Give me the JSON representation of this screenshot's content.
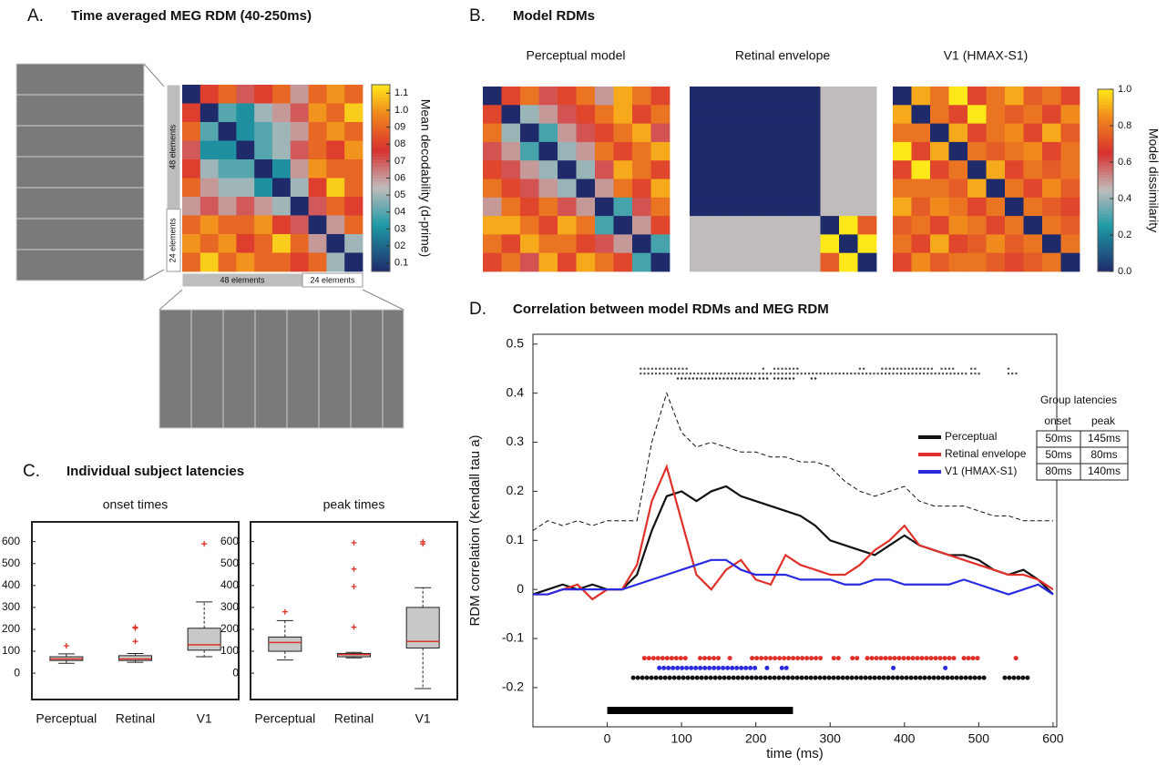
{
  "chart_data": [
    {
      "type": "heatmap",
      "panel": "A.",
      "title": "Time averaged MEG RDM (40-250ms)",
      "row_groups": [
        "48 elements",
        "24 elements"
      ],
      "col_groups": [
        "48 elements",
        "24 elements"
      ],
      "zlim": [
        0.05,
        1.15
      ],
      "colorbar_label": "Mean decodability (d-prime)",
      "colorbar_ticks": [
        0.1,
        {
          "value": 0.2,
          "label": "02"
        },
        {
          "value": 0.3,
          "label": "03"
        },
        {
          "value": 0.4,
          "label": "04"
        },
        {
          "value": 0.5,
          "label": "05"
        },
        {
          "value": 0.6,
          "label": "06"
        },
        {
          "value": 0.7,
          "label": "07"
        },
        {
          "value": 0.8,
          "label": "08"
        },
        {
          "value": 0.9,
          "label": "09"
        },
        {
          "value": 1.0,
          "label": "1.0"
        },
        1.1
      ],
      "panels": [
        {
          "values": [
            [
              0,
              0.8,
              0.9,
              0.7,
              0.8,
              0.9,
              0.6,
              0.9,
              1.0,
              0.9
            ],
            [
              0.8,
              0,
              0.4,
              0.3,
              0.5,
              0.6,
              0.7,
              1.0,
              0.9,
              1.1
            ],
            [
              0.9,
              0.4,
              0,
              0.3,
              0.4,
              0.5,
              0.6,
              0.9,
              1.0,
              0.9
            ],
            [
              0.7,
              0.3,
              0.3,
              0,
              0.4,
              0.5,
              0.7,
              0.9,
              0.8,
              1.0
            ],
            [
              0.8,
              0.5,
              0.4,
              0.4,
              0,
              0.3,
              0.6,
              1.0,
              0.9,
              0.9
            ],
            [
              0.9,
              0.6,
              0.5,
              0.5,
              0.3,
              0,
              0.5,
              0.8,
              1.1,
              0.9
            ],
            [
              0.6,
              0.7,
              0.6,
              0.7,
              0.6,
              0.5,
              0,
              0.7,
              0.9,
              0.8
            ],
            [
              0.9,
              1.0,
              0.9,
              0.9,
              1.0,
              0.8,
              0.7,
              0,
              0.6,
              0.9
            ],
            [
              1.0,
              0.9,
              1.0,
              0.8,
              0.9,
              1.1,
              0.9,
              0.6,
              0,
              0.5
            ],
            [
              0.9,
              1.1,
              0.9,
              1.0,
              0.9,
              0.9,
              0.8,
              0.9,
              0.5,
              0
            ]
          ]
        }
      ]
    },
    {
      "type": "heatmap",
      "panel": "B.",
      "title": "Model RDMs",
      "zlim": [
        0,
        1
      ],
      "colorbar_label": "Model dissimilarity",
      "colorbar_ticks": [
        {
          "value": 0,
          "label": "0.0"
        },
        0.2,
        0.4,
        0.6,
        0.8,
        {
          "value": 1,
          "label": "1.0"
        }
      ],
      "panels": [
        {
          "subtitle": "Perceptual model",
          "values": [
            [
              0,
              0.7,
              0.8,
              0.6,
              0.7,
              0.8,
              0.5,
              0.9,
              0.8,
              0.7
            ],
            [
              0.7,
              0,
              0.4,
              0.5,
              0.6,
              0.7,
              0.8,
              0.9,
              0.7,
              0.8
            ],
            [
              0.8,
              0.4,
              0,
              0.3,
              0.5,
              0.6,
              0.7,
              0.8,
              0.9,
              0.6
            ],
            [
              0.6,
              0.5,
              0.3,
              0,
              0.4,
              0.5,
              0.8,
              0.7,
              0.8,
              0.9
            ],
            [
              0.7,
              0.6,
              0.5,
              0.4,
              0,
              0.4,
              0.6,
              0.9,
              0.8,
              0.7
            ],
            [
              0.8,
              0.7,
              0.6,
              0.5,
              0.4,
              0,
              0.5,
              0.8,
              0.7,
              0.9
            ],
            [
              0.5,
              0.8,
              0.7,
              0.8,
              0.6,
              0.5,
              0,
              0.3,
              0.6,
              0.8
            ],
            [
              0.9,
              0.9,
              0.8,
              0.7,
              0.9,
              0.8,
              0.3,
              0,
              0.5,
              0.7
            ],
            [
              0.8,
              0.7,
              0.9,
              0.8,
              0.8,
              0.7,
              0.6,
              0.5,
              0,
              0.3
            ],
            [
              0.7,
              0.8,
              0.6,
              0.9,
              0.7,
              0.9,
              0.8,
              0.7,
              0.3,
              0
            ]
          ]
        },
        {
          "subtitle": "Retinal envelope",
          "values": [
            [
              0,
              0,
              0,
              0,
              0,
              0,
              0,
              0.45,
              0.45,
              0.45
            ],
            [
              0,
              0,
              0,
              0,
              0,
              0,
              0,
              0.45,
              0.45,
              0.45
            ],
            [
              0,
              0,
              0,
              0,
              0,
              0,
              0,
              0.45,
              0.45,
              0.45
            ],
            [
              0,
              0,
              0,
              0,
              0,
              0,
              0,
              0.45,
              0.45,
              0.45
            ],
            [
              0,
              0,
              0,
              0,
              0,
              0,
              0,
              0.45,
              0.45,
              0.45
            ],
            [
              0,
              0,
              0,
              0,
              0,
              0,
              0,
              0.45,
              0.45,
              0.45
            ],
            [
              0,
              0,
              0,
              0,
              0,
              0,
              0,
              0.45,
              0.45,
              0.45
            ],
            [
              0.45,
              0.45,
              0.45,
              0.45,
              0.45,
              0.45,
              0.45,
              0,
              1.0,
              0.75
            ],
            [
              0.45,
              0.45,
              0.45,
              0.45,
              0.45,
              0.45,
              0.45,
              1.0,
              0,
              1.0
            ],
            [
              0.45,
              0.45,
              0.45,
              0.45,
              0.45,
              0.45,
              0.45,
              0.75,
              1.0,
              0
            ]
          ]
        },
        {
          "subtitle": "V1 (HMAX-S1)",
          "values": [
            [
              0,
              0.9,
              0.8,
              1.0,
              0.7,
              0.8,
              0.9,
              0.75,
              0.8,
              0.7
            ],
            [
              0.9,
              0,
              0.8,
              0.7,
              1.0,
              0.8,
              0.75,
              0.8,
              0.7,
              0.85
            ],
            [
              0.8,
              0.8,
              0,
              0.9,
              0.7,
              0.8,
              0.85,
              0.7,
              0.9,
              0.75
            ],
            [
              1.0,
              0.7,
              0.9,
              0,
              0.8,
              0.75,
              0.8,
              0.85,
              0.7,
              0.8
            ],
            [
              0.7,
              1.0,
              0.7,
              0.8,
              0,
              0.9,
              0.7,
              0.8,
              0.75,
              0.8
            ],
            [
              0.8,
              0.8,
              0.8,
              0.75,
              0.9,
              0,
              0.8,
              0.7,
              0.85,
              0.75
            ],
            [
              0.9,
              0.75,
              0.85,
              0.8,
              0.7,
              0.8,
              0,
              0.8,
              0.75,
              0.7
            ],
            [
              0.75,
              0.8,
              0.7,
              0.85,
              0.8,
              0.7,
              0.8,
              0,
              0.8,
              0.75
            ],
            [
              0.8,
              0.7,
              0.9,
              0.7,
              0.75,
              0.85,
              0.75,
              0.8,
              0,
              0.8
            ],
            [
              0.7,
              0.85,
              0.75,
              0.8,
              0.8,
              0.75,
              0.7,
              0.75,
              0.8,
              0
            ]
          ]
        }
      ]
    },
    {
      "type": "box",
      "panel": "C.",
      "title": "Individual subject latencies",
      "box_color": "#c8c8c8",
      "median_color": "#e0302a",
      "flier_color": "#e0302a",
      "categories": [
        "Perceptual",
        "Retinal",
        "V1"
      ],
      "ylim": [
        -120,
        690
      ],
      "yticks": [
        0,
        100,
        200,
        300,
        400,
        500,
        600
      ],
      "panels": [
        {
          "subtitle": "onset times",
          "boxes": [
            {
              "whislo": 45,
              "q1": 58,
              "med": 65,
              "q3": 75,
              "whishi": 88,
              "fliers": [
                125
              ]
            },
            {
              "whislo": 50,
              "q1": 58,
              "med": 65,
              "q3": 80,
              "whishi": 90,
              "fliers": [
                145,
                205,
                210
              ]
            },
            {
              "whislo": 75,
              "q1": 105,
              "med": 130,
              "q3": 205,
              "whishi": 325,
              "fliers": [
                590
              ]
            }
          ]
        },
        {
          "subtitle": "peak times",
          "boxes": [
            {
              "whislo": 60,
              "q1": 100,
              "med": 140,
              "q3": 165,
              "whishi": 240,
              "fliers": [
                280
              ]
            },
            {
              "whislo": 70,
              "q1": 75,
              "med": 85,
              "q3": 90,
              "whishi": 95,
              "fliers": [
                210,
                395,
                475,
                595
              ]
            },
            {
              "whislo": -70,
              "q1": 115,
              "med": 145,
              "q3": 300,
              "whishi": 390,
              "fliers": [
                590,
                600
              ]
            }
          ]
        }
      ]
    },
    {
      "type": "line",
      "panel": "D.",
      "title": "Correlation between model RDMs and MEG RDM",
      "x_label": "time (ms)",
      "y_label": "RDM correlation (Kendall tau a)",
      "xlim": [
        -100,
        605
      ],
      "ylim": [
        -0.28,
        0.52
      ],
      "xticks": [
        0,
        100,
        200,
        300,
        400,
        500,
        600
      ],
      "yticks": [
        -0.2,
        -0.1,
        0,
        0.1,
        0.2,
        0.3,
        0.4,
        0.5
      ],
      "x": [
        -100,
        -80,
        -60,
        -40,
        -20,
        0,
        20,
        40,
        60,
        80,
        100,
        120,
        140,
        160,
        180,
        200,
        220,
        240,
        260,
        280,
        300,
        320,
        340,
        360,
        380,
        400,
        420,
        440,
        460,
        480,
        500,
        520,
        540,
        560,
        580,
        600
      ],
      "series": [
        {
          "name": "Perceptual",
          "color": "#111111",
          "values": [
            -0.01,
            0.0,
            0.01,
            0.0,
            0.01,
            0.0,
            0.0,
            0.03,
            0.12,
            0.19,
            0.2,
            0.18,
            0.2,
            0.21,
            0.19,
            0.18,
            0.17,
            0.16,
            0.15,
            0.13,
            0.1,
            0.09,
            0.08,
            0.07,
            0.09,
            0.11,
            0.09,
            0.08,
            0.07,
            0.07,
            0.06,
            0.04,
            0.03,
            0.04,
            0.02,
            -0.01
          ]
        },
        {
          "name": "Retinal envelope",
          "color": "#e0302a",
          "values": [
            -0.01,
            -0.01,
            0.0,
            0.01,
            -0.02,
            0.0,
            0.0,
            0.05,
            0.18,
            0.25,
            0.14,
            0.03,
            0.0,
            0.04,
            0.06,
            0.02,
            0.01,
            0.07,
            0.05,
            0.04,
            0.03,
            0.03,
            0.05,
            0.08,
            0.1,
            0.13,
            0.09,
            0.08,
            0.07,
            0.06,
            0.05,
            0.04,
            0.03,
            0.03,
            0.02,
            0.0
          ]
        },
        {
          "name": "V1 (HMAX-S1)",
          "color": "#2a2ae0",
          "values": [
            -0.01,
            -0.01,
            0.0,
            0.0,
            0.0,
            0.0,
            0.0,
            0.01,
            0.02,
            0.03,
            0.04,
            0.05,
            0.06,
            0.06,
            0.04,
            0.03,
            0.03,
            0.03,
            0.02,
            0.02,
            0.02,
            0.01,
            0.01,
            0.02,
            0.02,
            0.01,
            0.01,
            0.01,
            0.01,
            0.02,
            0.01,
            0.0,
            -0.01,
            0.0,
            0.01,
            -0.01
          ]
        }
      ],
      "ceiling": {
        "color": "#111111",
        "values": [
          0.12,
          0.14,
          0.13,
          0.14,
          0.13,
          0.14,
          0.14,
          0.14,
          0.3,
          0.4,
          0.32,
          0.29,
          0.3,
          0.29,
          0.28,
          0.28,
          0.27,
          0.27,
          0.26,
          0.26,
          0.25,
          0.22,
          0.2,
          0.19,
          0.2,
          0.21,
          0.18,
          0.17,
          0.17,
          0.17,
          0.16,
          0.15,
          0.15,
          0.14,
          0.14,
          0.14
        ]
      },
      "markers": [
        {
          "y": 0.45,
          "color": "#555555",
          "segments": [
            [
              45,
              110
            ],
            [
              210,
              210
            ],
            [
              225,
              260
            ],
            [
              340,
              350
            ],
            [
              370,
              440
            ],
            [
              450,
              470
            ],
            [
              490,
              500
            ],
            [
              540,
              540
            ]
          ]
        },
        {
          "y": 0.44,
          "color": "#555555",
          "segments": [
            [
              45,
              485
            ],
            [
              490,
              505
            ],
            [
              540,
              555
            ]
          ]
        },
        {
          "y": 0.43,
          "color": "#333333",
          "segments": [
            [
              95,
              200
            ],
            [
              205,
              220
            ],
            [
              225,
              255
            ],
            [
              275,
              285
            ]
          ]
        }
      ],
      "significance": [
        {
          "y": -0.14,
          "color": "#e0302a",
          "segments": [
            [
              50,
              110
            ],
            [
              125,
              150
            ],
            [
              165,
              170
            ],
            [
              195,
              290
            ],
            [
              305,
              315
            ],
            [
              330,
              340
            ],
            [
              350,
              470
            ],
            [
              480,
              500
            ],
            [
              550,
              550
            ]
          ]
        },
        {
          "y": -0.16,
          "color": "#2a2ae0",
          "segments": [
            [
              70,
              200
            ],
            [
              215,
              215
            ],
            [
              235,
              245
            ],
            [
              385,
              385
            ],
            [
              455,
              455
            ]
          ]
        },
        {
          "y": -0.18,
          "color": "#111111",
          "segments": [
            [
              35,
              510
            ],
            [
              535,
              570
            ]
          ]
        }
      ],
      "stimulus": [
        0,
        250
      ],
      "table": {
        "title": "Group latencies",
        "columns": [
          "onset",
          "peak"
        ],
        "rows": [
          [
            "50ms",
            "145ms"
          ],
          [
            "50ms",
            "80ms"
          ],
          [
            "80ms",
            "140ms"
          ]
        ]
      }
    }
  ]
}
